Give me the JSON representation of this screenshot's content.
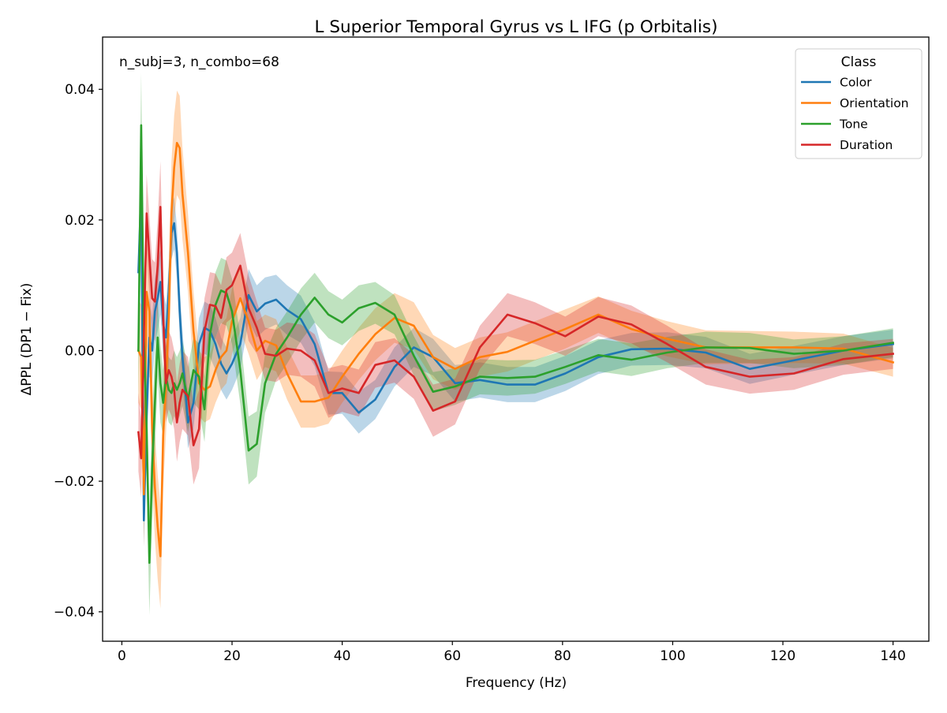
{
  "chart_data": {
    "type": "line",
    "title": "L Superior Temporal Gyrus vs L IFG (p Orbitalis)",
    "xlabel": "Frequency (Hz)",
    "ylabel": "ΔPPL (DP1 − Fix)",
    "annotation": "n_subj=3, n_combo=68",
    "xlim": [
      -3.5,
      146.5
    ],
    "ylim": [
      -0.0445,
      0.048
    ],
    "xticks": [
      0,
      20,
      40,
      60,
      80,
      100,
      120,
      140
    ],
    "xtick_labels": [
      "0",
      "20",
      "40",
      "60",
      "80",
      "100",
      "120",
      "140"
    ],
    "yticks": [
      -0.04,
      -0.02,
      0.0,
      0.02,
      0.04
    ],
    "ytick_labels": [
      "−0.04",
      "−0.02",
      "0.00",
      "0.02",
      "0.04"
    ],
    "grid": false,
    "legend": {
      "title": "Class",
      "position": "top-right"
    },
    "x": [
      3,
      3.5,
      4,
      4.5,
      5,
      5.5,
      6,
      6.5,
      7,
      7.5,
      8,
      8.5,
      9,
      9.5,
      10,
      10.5,
      11,
      12,
      13,
      14,
      15,
      16,
      17,
      18,
      19,
      20,
      21.5,
      23,
      24.5,
      26,
      28,
      30,
      32.5,
      35,
      37.5,
      40,
      43,
      46,
      49.5,
      53,
      56.5,
      60.5,
      65,
      70,
      75,
      80.5,
      86.5,
      92.5,
      99,
      106,
      114,
      122,
      131,
      140
    ],
    "series": [
      {
        "name": "Color",
        "color": "#1f77b4",
        "values": [
          0.012,
          0.025,
          -0.026,
          -0.01,
          0.002,
          0.0,
          0.006,
          0.008,
          0.0105,
          0.004,
          0.002,
          0.009,
          0.018,
          0.0195,
          0.015,
          0.006,
          -0.001,
          -0.011,
          -0.008,
          0.001,
          0.0035,
          0.003,
          0.001,
          -0.002,
          -0.0035,
          -0.002,
          0.001,
          0.0085,
          0.006,
          0.0072,
          0.0078,
          0.0062,
          0.0048,
          0.001,
          -0.0065,
          -0.0065,
          -0.0095,
          -0.0075,
          -0.0025,
          0.0005,
          -0.001,
          -0.005,
          -0.0045,
          -0.0052,
          -0.0052,
          -0.0035,
          -0.001,
          0.0002,
          0.0003,
          -0.0003,
          -0.0028,
          -0.0015,
          0.0,
          0.001
        ],
        "band": [
          0.004,
          0.004,
          0.004,
          0.006,
          0.006,
          0.005,
          0.005,
          0.005,
          0.005,
          0.005,
          0.005,
          0.004,
          0.004,
          0.004,
          0.004,
          0.004,
          0.004,
          0.004,
          0.004,
          0.004,
          0.004,
          0.004,
          0.004,
          0.004,
          0.004,
          0.004,
          0.004,
          0.004,
          0.004,
          0.004,
          0.0038,
          0.0038,
          0.0036,
          0.0034,
          0.0033,
          0.0032,
          0.0032,
          0.003,
          0.003,
          0.003,
          0.0028,
          0.0028,
          0.0027,
          0.0027,
          0.0027,
          0.0027,
          0.0026,
          0.0025,
          0.0025,
          0.0024,
          0.0023,
          0.0022,
          0.0022,
          0.0022
        ]
      },
      {
        "name": "Orientation",
        "color": "#ff7f0e",
        "values": [
          0.0,
          -0.001,
          -0.022,
          0.009,
          0.006,
          -0.012,
          -0.021,
          -0.027,
          -0.0315,
          -0.013,
          -0.005,
          0.005,
          0.021,
          0.028,
          0.0318,
          0.031,
          0.024,
          0.015,
          0.003,
          -0.005,
          -0.006,
          -0.0055,
          -0.003,
          -0.001,
          0.0,
          0.0045,
          0.008,
          0.0045,
          0.0,
          0.0015,
          0.0008,
          -0.0035,
          -0.0078,
          -0.0078,
          -0.0072,
          -0.004,
          -0.0005,
          0.0025,
          0.005,
          0.0038,
          -0.001,
          -0.0028,
          -0.001,
          -0.0002,
          0.0015,
          0.0033,
          0.0055,
          0.0033,
          0.0018,
          0.0005,
          0.0005,
          0.0005,
          0.0003,
          -0.0018
        ],
        "band": [
          0.008,
          0.008,
          0.008,
          0.008,
          0.008,
          0.008,
          0.008,
          0.008,
          0.008,
          0.008,
          0.008,
          0.008,
          0.008,
          0.008,
          0.008,
          0.008,
          0.007,
          0.006,
          0.006,
          0.005,
          0.005,
          0.005,
          0.005,
          0.005,
          0.005,
          0.005,
          0.005,
          0.005,
          0.0045,
          0.004,
          0.004,
          0.004,
          0.004,
          0.004,
          0.004,
          0.004,
          0.004,
          0.004,
          0.0038,
          0.0036,
          0.0034,
          0.0032,
          0.003,
          0.003,
          0.003,
          0.003,
          0.0028,
          0.0028,
          0.0027,
          0.0026,
          0.0025,
          0.0024,
          0.0023,
          0.0022
        ]
      },
      {
        "name": "Tone",
        "color": "#2ca02c",
        "values": [
          0.0,
          0.0345,
          0.002,
          -0.012,
          -0.0325,
          -0.018,
          -0.008,
          0.002,
          -0.005,
          -0.008,
          -0.004,
          -0.006,
          -0.0065,
          -0.005,
          -0.006,
          -0.005,
          -0.0035,
          -0.0075,
          -0.003,
          -0.004,
          -0.009,
          0.0025,
          0.007,
          0.0092,
          0.0088,
          0.006,
          -0.003,
          -0.0153,
          -0.0143,
          -0.005,
          -0.0005,
          0.002,
          0.0055,
          0.0081,
          0.0055,
          0.0043,
          0.0065,
          0.0073,
          0.0055,
          -0.0008,
          -0.0063,
          -0.0055,
          -0.004,
          -0.0042,
          -0.004,
          -0.0025,
          -0.0007,
          -0.0014,
          -0.0003,
          0.0005,
          0.0004,
          -0.0005,
          0.0,
          0.0012
        ],
        "band": [
          0.008,
          0.008,
          0.008,
          0.008,
          0.008,
          0.008,
          0.008,
          0.006,
          0.006,
          0.005,
          0.005,
          0.005,
          0.005,
          0.005,
          0.005,
          0.005,
          0.005,
          0.005,
          0.005,
          0.005,
          0.005,
          0.005,
          0.005,
          0.005,
          0.005,
          0.005,
          0.0052,
          0.0052,
          0.005,
          0.0045,
          0.004,
          0.004,
          0.004,
          0.0038,
          0.0036,
          0.0035,
          0.0035,
          0.0032,
          0.003,
          0.003,
          0.003,
          0.0028,
          0.0027,
          0.0027,
          0.0026,
          0.0026,
          0.0025,
          0.0025,
          0.0024,
          0.0024,
          0.0023,
          0.0022,
          0.0022,
          0.0022
        ]
      },
      {
        "name": "Duration",
        "color": "#d62728",
        "values": [
          -0.0125,
          -0.0165,
          0.002,
          0.021,
          0.0145,
          0.008,
          0.0075,
          0.013,
          0.022,
          0.005,
          -0.005,
          -0.003,
          -0.004,
          -0.006,
          -0.011,
          -0.008,
          -0.006,
          -0.007,
          -0.0145,
          -0.012,
          0.003,
          0.007,
          0.0068,
          0.005,
          0.0093,
          0.01,
          0.013,
          0.0065,
          0.0035,
          -0.0005,
          -0.0008,
          0.0003,
          0.0,
          -0.0015,
          -0.0065,
          -0.0058,
          -0.0065,
          -0.0022,
          -0.0015,
          -0.004,
          -0.0092,
          -0.0078,
          0.0005,
          0.0055,
          0.0042,
          0.0022,
          0.0052,
          0.004,
          0.001,
          -0.0025,
          -0.004,
          -0.0035,
          -0.0013,
          -0.0005
        ],
        "band": [
          0.006,
          0.006,
          0.006,
          0.006,
          0.006,
          0.006,
          0.006,
          0.007,
          0.007,
          0.006,
          0.006,
          0.006,
          0.006,
          0.006,
          0.006,
          0.006,
          0.006,
          0.006,
          0.006,
          0.006,
          0.005,
          0.005,
          0.005,
          0.005,
          0.005,
          0.005,
          0.005,
          0.005,
          0.004,
          0.004,
          0.004,
          0.004,
          0.004,
          0.004,
          0.0038,
          0.0036,
          0.0036,
          0.0035,
          0.0034,
          0.0034,
          0.004,
          0.0035,
          0.0033,
          0.0033,
          0.0032,
          0.003,
          0.003,
          0.0029,
          0.0028,
          0.0027,
          0.0026,
          0.0025,
          0.0024,
          0.0023
        ]
      }
    ]
  }
}
